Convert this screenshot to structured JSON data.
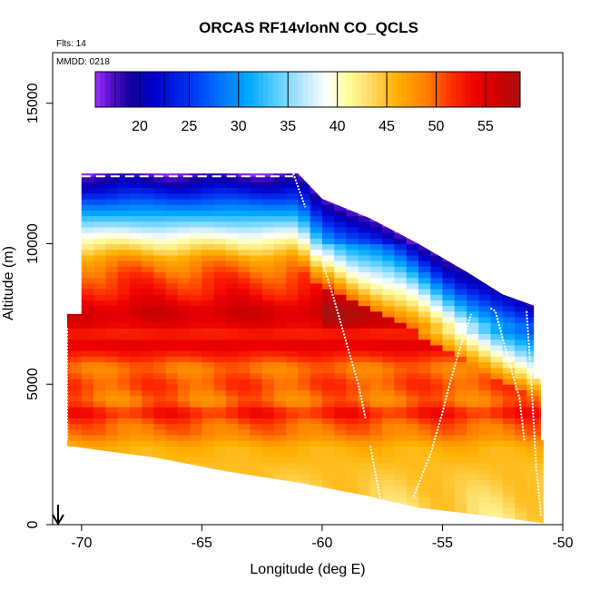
{
  "chart_data": {
    "type": "heatmap",
    "title": "ORCAS RF14vlonN CO_QCLS",
    "annotation_flts": "Flts: 14",
    "annotation_mmdd": "MMDD: 0218",
    "xlabel": "Longitude (deg E)",
    "ylabel": "Altitude (m)",
    "xlim": [
      -71.2,
      -50
    ],
    "ylim": [
      0,
      16800
    ],
    "xticks": [
      -70,
      -65,
      -60,
      -55,
      -50
    ],
    "yticks": [
      0,
      5000,
      10000,
      15000
    ],
    "colorbar": {
      "range": [
        15.5,
        58.5
      ],
      "ticks": [
        20,
        25,
        30,
        35,
        40,
        45,
        50,
        55
      ],
      "stops": [
        [
          15.5,
          "#9a30ff"
        ],
        [
          17,
          "#5a10d0"
        ],
        [
          19,
          "#1400a0"
        ],
        [
          21.5,
          "#0000cc"
        ],
        [
          25,
          "#0030f0"
        ],
        [
          28,
          "#0070ff"
        ],
        [
          31,
          "#00a8ff"
        ],
        [
          34,
          "#60d0ff"
        ],
        [
          37,
          "#c8ecff"
        ],
        [
          39,
          "#ffffff"
        ],
        [
          41,
          "#ffffa0"
        ],
        [
          43,
          "#ffe070"
        ],
        [
          46,
          "#ffb000"
        ],
        [
          49,
          "#ff8000"
        ],
        [
          51.5,
          "#ff3000"
        ],
        [
          54,
          "#ee0000"
        ],
        [
          56.5,
          "#cc0000"
        ],
        [
          58.5,
          "#aa1010"
        ]
      ]
    },
    "domain": {
      "top_edge": [
        [
          -70,
          12500
        ],
        [
          -61,
          12500
        ],
        [
          -60,
          11600
        ],
        [
          -58,
          10900
        ],
        [
          -56,
          10000
        ],
        [
          -54,
          9000
        ],
        [
          -52.5,
          8200
        ],
        [
          -51.2,
          7800
        ]
      ],
      "bottom_edge": [
        [
          -70.6,
          2800
        ],
        [
          -67,
          2400
        ],
        [
          -64,
          1900
        ],
        [
          -61,
          1500
        ],
        [
          -58,
          1000
        ],
        [
          -56,
          600
        ],
        [
          -53,
          300
        ],
        [
          -50.8,
          50
        ]
      ],
      "left_edge": [
        [
          -70.6,
          2800
        ],
        [
          -70.6,
          7500
        ],
        [
          -70,
          7500
        ],
        [
          -70,
          12500
        ]
      ],
      "right_edge": [
        [
          -51.2,
          7800
        ],
        [
          -51.2,
          5200
        ],
        [
          -50.9,
          5200
        ],
        [
          -50.9,
          3000
        ],
        [
          -50.8,
          3000
        ],
        [
          -50.8,
          50
        ]
      ]
    },
    "field_profile": [
      [
        0,
        43
      ],
      [
        1000,
        44
      ],
      [
        2000,
        45
      ],
      [
        2800,
        46
      ],
      [
        3200,
        49
      ],
      [
        3600,
        50
      ],
      [
        4000,
        53
      ],
      [
        4400,
        49
      ],
      [
        5000,
        51
      ],
      [
        5600,
        49
      ],
      [
        6000,
        52
      ],
      [
        6400,
        55
      ],
      [
        6800,
        52
      ],
      [
        7200,
        55
      ],
      [
        7600,
        56
      ],
      [
        8200,
        53
      ],
      [
        8800,
        51
      ],
      [
        9400,
        48
      ],
      [
        9800,
        45
      ],
      [
        10200,
        41
      ],
      [
        10600,
        37
      ],
      [
        11000,
        33
      ],
      [
        11400,
        29
      ],
      [
        11800,
        26
      ],
      [
        12200,
        22
      ],
      [
        12600,
        19
      ]
    ],
    "flight_tracks": [
      [
        [
          -70.6,
          7000
        ],
        [
          -70.6,
          3000
        ]
      ],
      [
        [
          -61.2,
          12500
        ],
        [
          -60.7,
          11300
        ]
      ],
      [
        [
          -60,
          9400
        ],
        [
          -59.5,
          8000
        ],
        [
          -59,
          6500
        ],
        [
          -58.5,
          5000
        ],
        [
          -58.2,
          3800
        ]
      ],
      [
        [
          -58,
          2800
        ],
        [
          -57.6,
          1000
        ],
        [
          -57.3,
          0
        ]
      ],
      [
        [
          -56.2,
          1000
        ],
        [
          -55.5,
          2500
        ],
        [
          -55,
          4000
        ],
        [
          -54.7,
          5000
        ],
        [
          -54.3,
          6200
        ],
        [
          -53.8,
          7500
        ]
      ],
      [
        [
          -53,
          7700
        ],
        [
          -52.8,
          7600
        ],
        [
          -52.3,
          6000
        ],
        [
          -51.8,
          4500
        ],
        [
          -51.6,
          3000
        ]
      ],
      [
        [
          -51.5,
          7600
        ],
        [
          -51.3,
          5000
        ],
        [
          -51.1,
          2000
        ],
        [
          -50.9,
          300
        ]
      ]
    ]
  }
}
